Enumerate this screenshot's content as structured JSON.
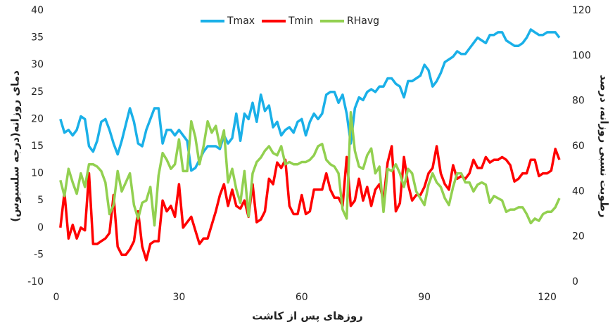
{
  "chart_data": {
    "type": "line",
    "x_label": "روزهای پس از کاشت",
    "y_label": "دمای روزانه(درجه سلسیوس)",
    "y2_label": "رطوبت نسبی روزانه، درصد",
    "x": [
      1,
      2,
      3,
      4,
      5,
      6,
      7,
      8,
      9,
      10,
      11,
      12,
      13,
      14,
      15,
      16,
      17,
      18,
      19,
      20,
      21,
      22,
      23,
      24,
      25,
      26,
      27,
      28,
      29,
      30,
      31,
      32,
      33,
      34,
      35,
      36,
      37,
      38,
      39,
      40,
      41,
      42,
      43,
      44,
      45,
      46,
      47,
      48,
      49,
      50,
      51,
      52,
      53,
      54,
      55,
      56,
      57,
      58,
      59,
      60,
      61,
      62,
      63,
      64,
      65,
      66,
      67,
      68,
      69,
      70,
      71,
      72,
      73,
      74,
      75,
      76,
      77,
      78,
      79,
      80,
      81,
      82,
      83,
      84,
      85,
      86,
      87,
      88,
      89,
      90,
      91,
      92,
      93,
      94,
      95,
      96,
      97,
      98,
      99,
      100,
      101,
      102,
      103,
      104,
      105,
      106,
      107,
      108,
      109,
      110,
      111,
      112,
      113,
      114,
      115,
      116,
      117,
      118,
      119,
      120,
      121,
      122,
      123
    ],
    "series": [
      {
        "name": "Tmax",
        "color": "#1ab0e8",
        "values": [
          20,
          17.5,
          18,
          17,
          18,
          20.5,
          20,
          15,
          14,
          16,
          19.5,
          20,
          18,
          15.5,
          13.5,
          16,
          19,
          22,
          19.5,
          15.5,
          15,
          18,
          20,
          22,
          22,
          15.5,
          18,
          18,
          17,
          18,
          17,
          16,
          10.5,
          11,
          12.5,
          14,
          15,
          15,
          15,
          14.5,
          17,
          15.5,
          16.5,
          21,
          16,
          21,
          20,
          23,
          19.5,
          24.5,
          21.5,
          22.5,
          18.5,
          19.5,
          17,
          18,
          18.5,
          17.5,
          19.5,
          20,
          17,
          19.5,
          21,
          20,
          21,
          24.5,
          25,
          25,
          23,
          24.5,
          21,
          15.5,
          22,
          24,
          23.5,
          25,
          25.5,
          25,
          26,
          26,
          27.5,
          27.5,
          26.5,
          26,
          24,
          27,
          27,
          27.5,
          28,
          30,
          29,
          26,
          27,
          28.5,
          30.5,
          31,
          31.5,
          32.5,
          32,
          32,
          33,
          34,
          35,
          34.5,
          34,
          35.5,
          35.5,
          36,
          36,
          34.5,
          34,
          33.5,
          33.5,
          34,
          35,
          36.5,
          36,
          35.5,
          35.5,
          36,
          36,
          36,
          35
        ]
      },
      {
        "name": "Tmin",
        "color": "#ff0000",
        "values": [
          0,
          6.5,
          -2,
          0.5,
          -2,
          0,
          -0.5,
          10,
          -3,
          -3,
          -2.5,
          -2,
          -1,
          6,
          -3.5,
          -5,
          -5,
          -4,
          -2.5,
          3,
          -3.5,
          -6,
          -3,
          -2.5,
          -2.5,
          5,
          3,
          4,
          2,
          8,
          0,
          1,
          2,
          -0.5,
          -3,
          -2,
          -2,
          0.5,
          3,
          6,
          8,
          4,
          7,
          4,
          3.5,
          5,
          2,
          8,
          1,
          1.5,
          3,
          9,
          8,
          12,
          11,
          12.5,
          4,
          2.5,
          2.5,
          6,
          2.5,
          3,
          7,
          7,
          7,
          10,
          7,
          5.5,
          5.5,
          4,
          13,
          4,
          5,
          9,
          5,
          7.5,
          4,
          7,
          8,
          5,
          12,
          15,
          3,
          4.5,
          13,
          8,
          5,
          6,
          6,
          7.5,
          10,
          11,
          15,
          10,
          8,
          7,
          11.5,
          9,
          9.5,
          9,
          10,
          12.5,
          11,
          11,
          13,
          12,
          12.5,
          12.5,
          13,
          12.5,
          11.5,
          8.5,
          9,
          10,
          10,
          12.5,
          12.5,
          9.5,
          10,
          10,
          10.5,
          14.5,
          12.5
        ]
      },
      {
        "name": "RHavg",
        "color": "#92d050",
        "axis": "y2",
        "values": [
          45,
          38,
          50,
          44,
          39,
          48,
          42,
          52,
          52,
          51,
          49,
          44,
          30,
          34,
          49,
          40,
          44,
          48,
          34,
          28,
          35,
          36,
          42,
          25,
          47,
          57,
          54,
          50,
          52,
          63,
          49,
          49,
          71,
          64,
          52,
          60,
          71,
          66,
          69,
          60,
          67,
          44,
          50,
          41,
          35,
          49,
          29,
          48,
          53,
          55,
          58,
          60,
          57,
          56,
          60,
          52,
          53,
          52,
          52,
          53,
          53,
          54,
          56,
          60,
          61,
          54,
          52,
          51,
          48,
          32,
          28,
          75,
          58,
          51,
          50,
          56,
          59,
          48,
          51,
          31,
          50,
          49,
          52,
          48,
          42,
          50,
          48,
          40,
          37,
          34,
          43,
          48,
          44,
          42,
          37,
          34,
          42,
          48,
          48,
          44,
          44,
          40,
          43,
          44,
          43,
          35,
          38,
          37,
          36,
          31,
          32,
          32,
          33,
          33,
          30,
          26,
          28,
          27,
          30,
          31,
          31,
          33,
          37
        ]
      }
    ],
    "xlim": [
      0,
      123
    ],
    "xticks": [
      0,
      30,
      60,
      90,
      120
    ],
    "ylim": [
      -10,
      40
    ],
    "yticks": [
      -10,
      -5,
      0,
      5,
      10,
      15,
      20,
      25,
      30,
      35,
      40
    ],
    "y2lim": [
      0,
      120
    ],
    "y2ticks": [
      0,
      20,
      40,
      60,
      80,
      100,
      120
    ],
    "grid": false,
    "legend": "top"
  }
}
